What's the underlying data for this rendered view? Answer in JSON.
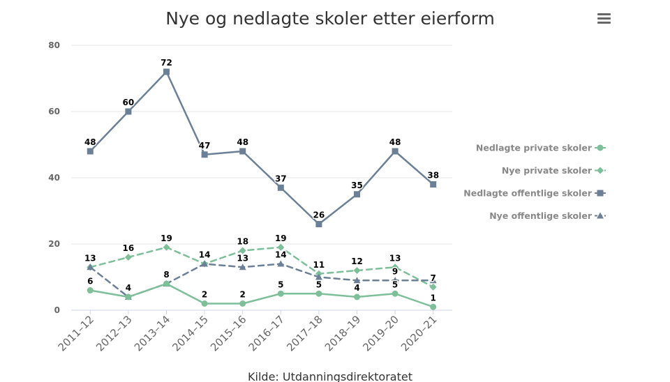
{
  "menu_icon": "hamburger-menu-icon",
  "credit": "Kilde: Utdanningsdirektoratet",
  "chart_data": {
    "type": "line",
    "title": "Nye og nedlagte skoler etter eierform",
    "xlabel": "",
    "ylabel": "",
    "ylim": [
      0,
      80
    ],
    "yticks": [
      0,
      20,
      40,
      60,
      80
    ],
    "grid": true,
    "legend_placement": "right",
    "categories": [
      "2011–12",
      "2012–13",
      "2013–14",
      "2014–15",
      "2015–16",
      "2016–17",
      "2017–18",
      "2018–19",
      "2019–20",
      "2020–21"
    ],
    "series": [
      {
        "name": "Nedlagte private skoler",
        "color": "#7dbf98",
        "dash": "solid",
        "marker": "circle",
        "values": [
          6,
          4,
          8,
          2,
          2,
          5,
          5,
          4,
          5,
          1
        ]
      },
      {
        "name": "Nye private skoler",
        "color": "#7dbf98",
        "dash": "dashed",
        "marker": "diamond",
        "values": [
          13,
          16,
          19,
          14,
          18,
          19,
          11,
          12,
          13,
          7
        ]
      },
      {
        "name": "Nedlagte offentlige skoler",
        "color": "#6b7f96",
        "dash": "solid",
        "marker": "square",
        "values": [
          48,
          60,
          72,
          47,
          48,
          37,
          26,
          35,
          48,
          38
        ]
      },
      {
        "name": "Nye offentlige skoler",
        "color": "#6b7f96",
        "dash": "dashed",
        "marker": "triangle",
        "values": [
          13,
          4,
          8,
          14,
          13,
          14,
          10,
          9,
          9,
          9
        ]
      }
    ],
    "data_labels": [
      {
        "series": 0,
        "values": [
          "6",
          "4",
          "8",
          "2",
          "2",
          "5",
          "5",
          "4",
          "5",
          "1"
        ]
      },
      {
        "series": 1,
        "values": [
          "13",
          "16",
          "19",
          "14",
          "18",
          "19",
          "11",
          "12",
          "13",
          "7"
        ]
      },
      {
        "series": 2,
        "values": [
          "48",
          "60",
          "72",
          "47",
          "48",
          "37",
          "26",
          "35",
          "48",
          "38"
        ]
      },
      {
        "series": 3,
        "values": [
          "",
          "",
          "",
          "",
          "13",
          "14",
          "",
          "",
          "9",
          ""
        ]
      }
    ]
  }
}
